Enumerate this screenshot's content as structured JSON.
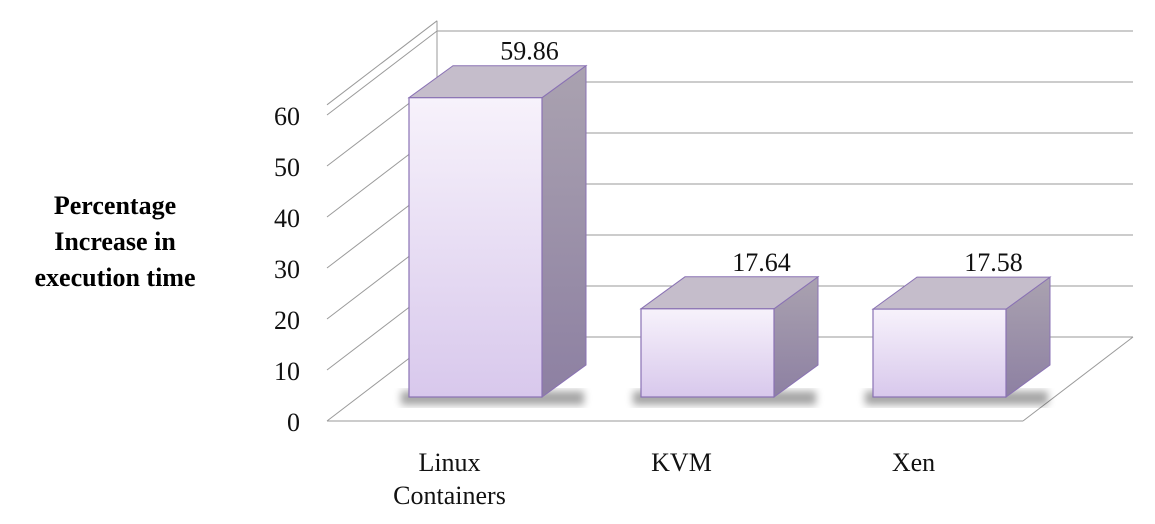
{
  "chart_data": {
    "type": "bar",
    "style": "3d",
    "categories": [
      "Linux Containers",
      "KVM",
      "Xen"
    ],
    "category_lines": [
      [
        "Linux",
        "Containers"
      ],
      [
        "KVM"
      ],
      [
        "Xen"
      ]
    ],
    "values": [
      59.86,
      17.64,
      17.58
    ],
    "data_labels": [
      "59.86",
      "17.64",
      "17.58"
    ],
    "title": "",
    "xlabel": "",
    "ylabel": "Percentage Increase in execution time",
    "ylabel_lines": [
      "Percentage",
      "Increase in",
      "execution time"
    ],
    "ylim": [
      0,
      60
    ],
    "yticks": [
      0,
      10,
      20,
      30,
      40,
      50,
      60
    ],
    "grid": true,
    "legend": "none",
    "colors": {
      "bar_front_top": "#f7f2fb",
      "bar_front_bottom": "#d8c8ec",
      "bar_side_top": "#aaa2b0",
      "bar_side_bottom": "#8d80a2",
      "bar_top": "#c5bdcb",
      "bar_edge": "#8a72b4",
      "grid": "#9a9a9a"
    }
  }
}
